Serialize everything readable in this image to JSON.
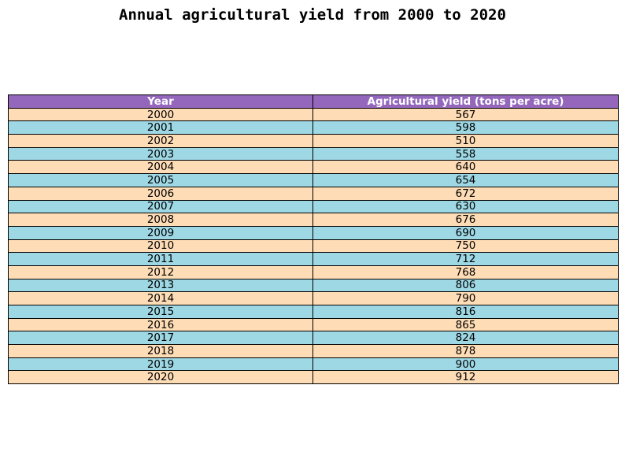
{
  "chart_data": {
    "type": "table",
    "title": "Annual agricultural yield from 2000 to 2020",
    "columns": [
      "Year",
      "Agricultural yield (tons per acre)"
    ],
    "rows": [
      [
        "2000",
        "567"
      ],
      [
        "2001",
        "598"
      ],
      [
        "2002",
        "510"
      ],
      [
        "2003",
        "558"
      ],
      [
        "2004",
        "640"
      ],
      [
        "2005",
        "654"
      ],
      [
        "2006",
        "672"
      ],
      [
        "2007",
        "630"
      ],
      [
        "2008",
        "676"
      ],
      [
        "2009",
        "690"
      ],
      [
        "2010",
        "750"
      ],
      [
        "2011",
        "712"
      ],
      [
        "2012",
        "768"
      ],
      [
        "2013",
        "806"
      ],
      [
        "2014",
        "790"
      ],
      [
        "2015",
        "816"
      ],
      [
        "2016",
        "865"
      ],
      [
        "2017",
        "824"
      ],
      [
        "2018",
        "878"
      ],
      [
        "2019",
        "900"
      ],
      [
        "2020",
        "912"
      ]
    ]
  },
  "colors": {
    "header_bg": "#9467bd",
    "row_even_bg": "#fedcb5",
    "row_odd_bg": "#9ed8e5",
    "border": "#000000"
  }
}
